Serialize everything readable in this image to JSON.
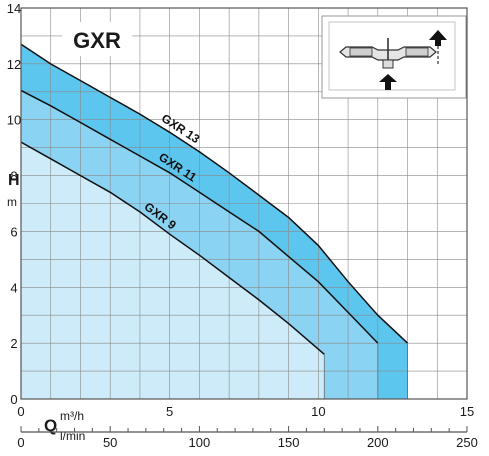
{
  "chart_data": {
    "type": "area",
    "title": "GXR",
    "ylabel": "H",
    "ylabel_unit": "m",
    "xlabel": "Q",
    "x_unit_primary": "m³/h",
    "x_unit_secondary": "l/min",
    "xlim": [
      0,
      15
    ],
    "ylim": [
      0,
      14
    ],
    "secondary_xlim": [
      0,
      250
    ],
    "x_ticks": [
      "0",
      "5",
      "10",
      "15"
    ],
    "y_ticks": [
      "0",
      "2",
      "4",
      "6",
      "8",
      "10",
      "12",
      "14"
    ],
    "secondary_x_ticks": [
      "0",
      "50",
      "100",
      "150",
      "200",
      "250"
    ],
    "grid": true,
    "series": [
      {
        "name": "GXR 13",
        "x": [
          0,
          1,
          2,
          3,
          4,
          5,
          6,
          7,
          8,
          9,
          10,
          11,
          12,
          13
        ],
        "y": [
          12.7,
          12.0,
          11.4,
          10.8,
          10.2,
          9.55,
          8.85,
          8.1,
          7.3,
          6.5,
          5.5,
          4.2,
          3.0,
          2.0
        ],
        "end_x": 13,
        "color": "#5cc6ee"
      },
      {
        "name": "GXR 11",
        "x": [
          0,
          1,
          2,
          3,
          4,
          5,
          6,
          7,
          8,
          9,
          10,
          11,
          12
        ],
        "y": [
          11.05,
          10.5,
          9.9,
          9.3,
          8.7,
          8.1,
          7.4,
          6.7,
          6.0,
          5.1,
          4.2,
          3.1,
          2.0
        ],
        "end_x": 12,
        "color": "#8bd3f2"
      },
      {
        "name": "GXR 9",
        "x": [
          0,
          1,
          2,
          3,
          4,
          5,
          6,
          7,
          8,
          9,
          10.2
        ],
        "y": [
          9.2,
          8.6,
          8.0,
          7.4,
          6.7,
          5.9,
          5.15,
          4.35,
          3.55,
          2.7,
          1.6
        ],
        "end_x": 10.2,
        "color": "#cdebf9"
      }
    ],
    "inset_icon": "submersible-pump-diagram"
  }
}
